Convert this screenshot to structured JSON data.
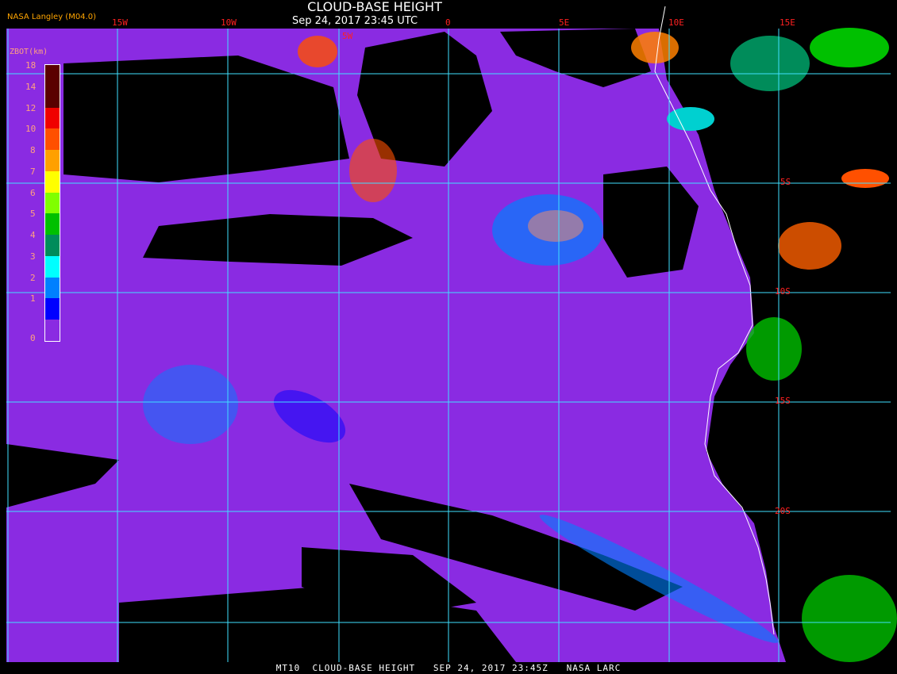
{
  "header": {
    "title": "CLOUD-BASE HEIGHT",
    "subtitle": "Sep 24, 2017 23:45 UTC",
    "source": "NASA Langley (M04.0)"
  },
  "longitude_labels": [
    "15W",
    "10W",
    "5W",
    "0",
    "5E",
    "10E",
    "15E"
  ],
  "latitude_labels": [
    "5S",
    "10S",
    "15S",
    "20S"
  ],
  "legend": {
    "title": "ZBOT(km)",
    "ticks": [
      "18",
      "14",
      "12",
      "10",
      "8",
      "7",
      "6",
      "5",
      "4",
      "3",
      "2",
      "1",
      "0"
    ],
    "colors": [
      "#5a0000",
      "#5a0000",
      "#f00000",
      "#ff5000",
      "#ffa000",
      "#ffff00",
      "#80ff00",
      "#00c000",
      "#008c5a",
      "#00ffff",
      "#0080ff",
      "#0000ff",
      "#8a2be2"
    ]
  },
  "colors": {
    "clear_sky": "#000000",
    "low_cloud": "#8a2be2",
    "grid": "#40e0ff",
    "coastline": "#ffffff"
  },
  "footer": "MT10  CLOUD-BASE HEIGHT   SEP 24, 2017 23:45Z   NASA LARC"
}
